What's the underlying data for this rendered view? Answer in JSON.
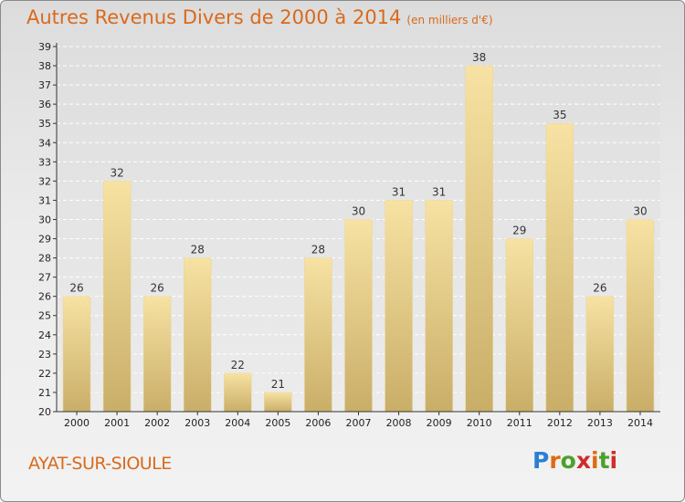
{
  "header": {
    "title": "Autres Revenus Divers de 2000 à 2014",
    "subtitle": "(en milliers d'€)"
  },
  "footer": {
    "commune": "AYAT-SUR-SIOULE",
    "logo_text": "Proxiti",
    "logo_colors": [
      "#2a7fd4",
      "#e06a10",
      "#4aa12d",
      "#d12b2b"
    ]
  },
  "colors": {
    "bar_light": "#f7e2a3",
    "bar_dark": "#c9ae68",
    "accent": "#d96a1c"
  },
  "chart_data": {
    "type": "bar",
    "title": "Autres Revenus Divers de 2000 à 2014",
    "subtitle": "(en milliers d'€)",
    "categories": [
      "2000",
      "2001",
      "2002",
      "2003",
      "2004",
      "2005",
      "2006",
      "2007",
      "2008",
      "2009",
      "2010",
      "2011",
      "2012",
      "2013",
      "2014"
    ],
    "values": [
      26,
      32,
      26,
      28,
      22,
      21,
      28,
      30,
      31,
      31,
      38,
      29,
      35,
      26,
      30
    ],
    "ylim": [
      20,
      39
    ],
    "yticks": [
      20,
      21,
      22,
      23,
      24,
      25,
      26,
      27,
      28,
      29,
      30,
      31,
      32,
      33,
      34,
      35,
      36,
      37,
      38,
      39
    ],
    "grid": true,
    "data_labels": true
  }
}
